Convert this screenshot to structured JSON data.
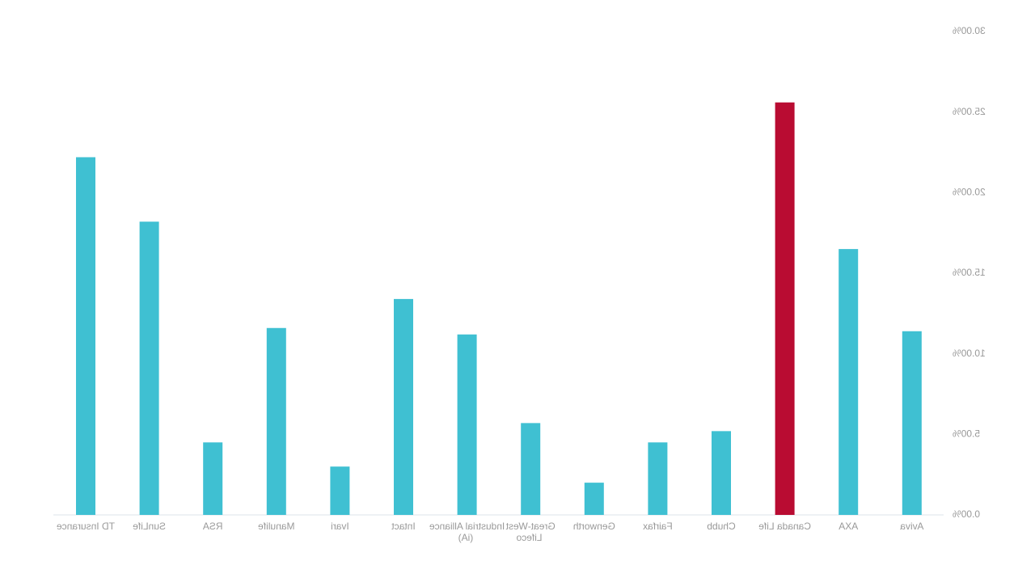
{
  "chart_data": {
    "type": "bar",
    "categories": [
      "TD Insurance",
      "SunLife",
      "RSA",
      "Manulife",
      "Ivari",
      "Intact",
      "Industrial Alliance (iA)",
      "Great-West Lifeco",
      "Genworth",
      "Fairfax",
      "Chubb",
      "Canada Life",
      "AXA",
      "Aviva"
    ],
    "values": [
      22.2,
      18.2,
      4.5,
      11.6,
      3.0,
      13.4,
      11.2,
      5.7,
      2.0,
      4.5,
      5.2,
      25.6,
      16.5,
      11.4
    ],
    "colors": [
      "#3fc0d2",
      "#3fc0d2",
      "#3fc0d2",
      "#3fc0d2",
      "#3fc0d2",
      "#3fc0d2",
      "#3fc0d2",
      "#3fc0d2",
      "#3fc0d2",
      "#3fc0d2",
      "#3fc0d2",
      "#b90c32",
      "#3fc0d2",
      "#3fc0d2"
    ],
    "ylim": [
      0,
      30
    ],
    "yticks": [
      {
        "value": 0,
        "label": "0.00%"
      },
      {
        "value": 5,
        "label": "5.00%"
      },
      {
        "value": 10,
        "label": "10.00%"
      },
      {
        "value": 15,
        "label": "15.00%"
      },
      {
        "value": 20,
        "label": "20.00%"
      },
      {
        "value": 25,
        "label": "25.00%"
      },
      {
        "value": 30,
        "label": "30.00%"
      }
    ]
  }
}
